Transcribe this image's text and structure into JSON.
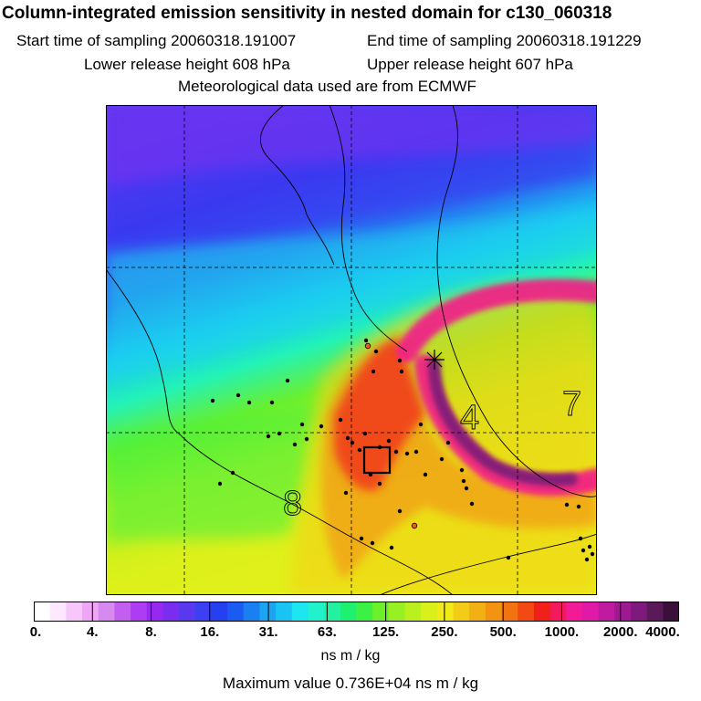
{
  "header": {
    "title": "Column-integrated emission sensitivity in nested domain for c130_060318",
    "start_label": "Start time of sampling 20060318.191007",
    "end_label": "End time of sampling 20060318.191229",
    "lower_label": "Lower release height  608 hPa",
    "upper_label": "Upper release height  607 hPa",
    "met_label": "Meteorological data used are from ECMWF"
  },
  "map": {
    "contour_labels": {
      "seven": "7",
      "four": "4",
      "eight": "8"
    }
  },
  "colorbar": {
    "tick_labels": [
      "0.",
      "4.",
      "8.",
      "16.",
      "31.",
      "63.",
      "125.",
      "250.",
      "500.",
      "1000.",
      "2000.",
      "4000."
    ],
    "colors": [
      "#ffffff",
      "#fde8ff",
      "#f7c6fb",
      "#eea6f5",
      "#d68af0",
      "#c35ff0",
      "#ad3cf2",
      "#9628f0",
      "#7a2cf0",
      "#5a38f0",
      "#3c3ff2",
      "#2540f0",
      "#1a5cf2",
      "#1a80f2",
      "#1aa4f2",
      "#1ac4f2",
      "#1ee6f0",
      "#22f2cc",
      "#22f2a0",
      "#1ef070",
      "#3cf044",
      "#6cf02c",
      "#96f022",
      "#baf01e",
      "#daf01a",
      "#f2ea18",
      "#f2cc16",
      "#f2b014",
      "#f29412",
      "#f27410",
      "#f24a12",
      "#f2201a",
      "#f21a5c",
      "#f21a96",
      "#e01aa6",
      "#c01aa0",
      "#9e1a90",
      "#7e1a7e",
      "#5a1a5a",
      "#3a103a"
    ]
  },
  "units": "ns m / kg",
  "max_value": "Maximum value  0.736E+04 ns m / kg"
}
